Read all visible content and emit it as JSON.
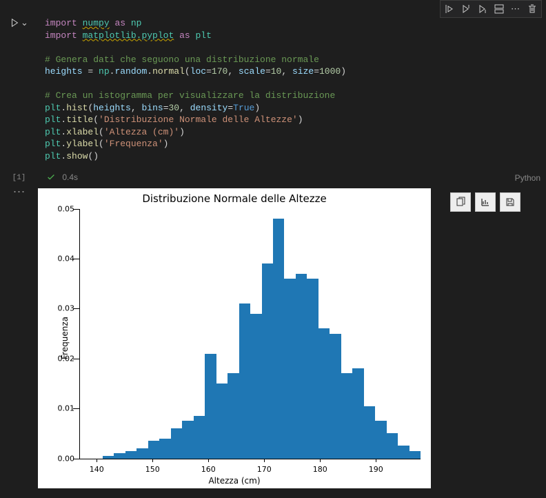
{
  "toolbar": {
    "icons": [
      "run-by-line-icon",
      "execute-above-icon",
      "execute-below-icon",
      "split-cell-icon",
      "more-icon",
      "delete-icon"
    ]
  },
  "run": {
    "chevron": "⌄"
  },
  "code": {
    "l1_import": "import",
    "l1_mod": "numpy",
    "l1_as": "as",
    "l1_alias": "np",
    "l2_import": "import",
    "l2_mod": "matplotlib.pyplot",
    "l2_as": "as",
    "l2_alias": "plt",
    "c1": "# Genera dati che seguono una distribuzione normale",
    "l3_var": "heights",
    "l3_eq": " = ",
    "l3_np": "np",
    "l3_dot1": ".",
    "l3_rand": "random",
    "l3_dot2": ".",
    "l3_norm": "normal",
    "l3_open": "(",
    "l3_loc_k": "loc",
    "l3_loc_eq": "=",
    "l3_loc_v": "170",
    "l3_c1": ", ",
    "l3_scale_k": "scale",
    "l3_scale_eq": "=",
    "l3_scale_v": "10",
    "l3_c2": ", ",
    "l3_size_k": "size",
    "l3_size_eq": "=",
    "l3_size_v": "1000",
    "l3_close": ")",
    "c2": "# Crea un istogramma per visualizzare la distribuzione",
    "l4_plt": "plt",
    "l4_dot": ".",
    "l4_fn": "hist",
    "l4_open": "(",
    "l4_arg1": "heights",
    "l4_c1": ", ",
    "l4_bins_k": "bins",
    "l4_bins_eq": "=",
    "l4_bins_v": "30",
    "l4_c2": ", ",
    "l4_den_k": "density",
    "l4_den_eq": "=",
    "l4_den_v": "True",
    "l4_close": ")",
    "l5_plt": "plt",
    "l5_dot": ".",
    "l5_fn": "title",
    "l5_open": "(",
    "l5_str": "'Distribuzione Normale delle Altezze'",
    "l5_close": ")",
    "l6_plt": "plt",
    "l6_dot": ".",
    "l6_fn": "xlabel",
    "l6_open": "(",
    "l6_str": "'Altezza (cm)'",
    "l6_close": ")",
    "l7_plt": "plt",
    "l7_dot": ".",
    "l7_fn": "ylabel",
    "l7_open": "(",
    "l7_str": "'Frequenza'",
    "l7_close": ")",
    "l8_plt": "plt",
    "l8_dot": ".",
    "l8_fn": "show",
    "l8_paren": "()"
  },
  "status": {
    "exec_count": "[1]",
    "duration": "0.4s",
    "kernel": "Python",
    "more": "⋯"
  },
  "chart": {
    "type": "histogram",
    "title": "Distribuzione Normale delle Altezze",
    "xlabel": "Altezza (cm)",
    "ylabel": "Frequenza",
    "bar_color": "#1f77b4",
    "background_color": "#ffffff",
    "text_color": "#000000",
    "xlim": [
      137,
      198
    ],
    "ylim": [
      0,
      0.05
    ],
    "xticks": [
      140,
      150,
      160,
      170,
      180,
      190
    ],
    "yticks": [
      0.0,
      0.01,
      0.02,
      0.03,
      0.04,
      0.05
    ],
    "ytick_labels": [
      "0.00",
      "0.01",
      "0.02",
      "0.03",
      "0.04",
      "0.05"
    ],
    "xtick_labels": [
      "140",
      "150",
      "160",
      "170",
      "180",
      "190"
    ],
    "bin_edges_start": 137,
    "bin_width": 2.03,
    "n_bins": 30,
    "values": [
      0.0,
      0.0,
      0.0005,
      0.001,
      0.0015,
      0.002,
      0.0035,
      0.004,
      0.006,
      0.0075,
      0.0085,
      0.021,
      0.015,
      0.017,
      0.031,
      0.029,
      0.039,
      0.048,
      0.036,
      0.037,
      0.036,
      0.026,
      0.025,
      0.017,
      0.018,
      0.0105,
      0.0075,
      0.005,
      0.0025,
      0.0015
    ],
    "tick_fontsize": 11,
    "label_fontsize": 12,
    "title_fontsize": 15
  },
  "output_tools": {
    "icons": [
      "copy-icon",
      "chart-icon",
      "save-icon"
    ]
  }
}
